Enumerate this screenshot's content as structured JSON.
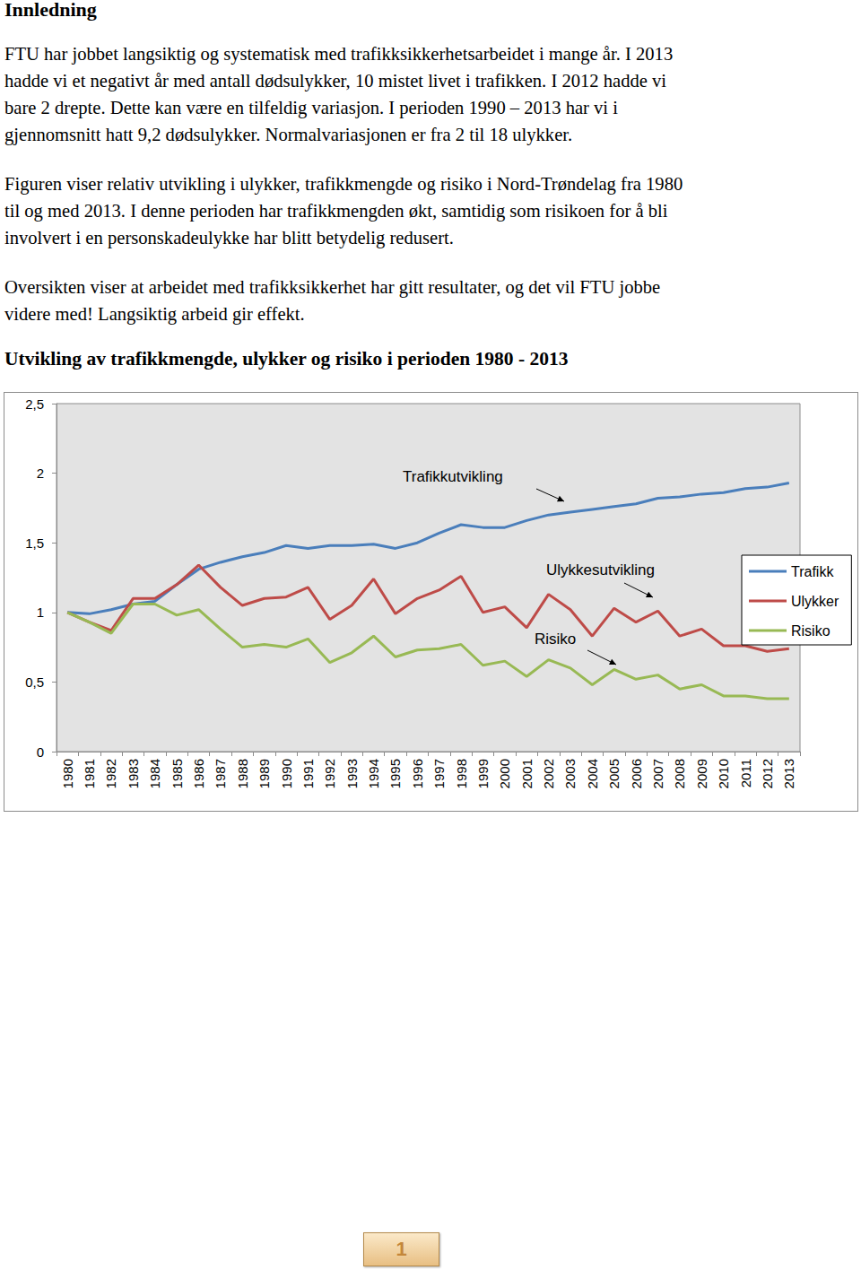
{
  "heading": "Innledning",
  "paragraphs": [
    [
      "FTU har jobbet langsiktig og systematisk med trafikksikkerhetsarbeidet i mange år. I 2013",
      "hadde vi et negativt år med antall dødsulykker, 10 mistet livet i trafikken. I 2012 hadde vi",
      "bare 2 drepte. Dette kan være en tilfeldig variasjon. I perioden 1990 – 2013 har vi i",
      "gjennomsnitt hatt 9,2 dødsulykker. Normalvariasjonen er fra 2 til 18 ulykker."
    ],
    [
      "Figuren viser relativ utvikling i ulykker, trafikkmengde og risiko i Nord-Trøndelag fra 1980",
      "til og med 2013. I denne perioden har trafikkmengden økt, samtidig som risikoen for å bli",
      "involvert i en personskadeulykke har blitt betydelig redusert."
    ],
    [
      "Oversikten viser at arbeidet med trafikksikkerhet har gitt resultater, og det vil FTU jobbe",
      "videre med! Langsiktig arbeid gir effekt."
    ]
  ],
  "figure_title": "Utvikling av trafikkmengde, ulykker og risiko i perioden 1980 - 2013",
  "chart_data": {
    "type": "line",
    "categories": [
      "1980",
      "1981",
      "1982",
      "1983",
      "1984",
      "1985",
      "1986",
      "1987",
      "1988",
      "1989",
      "1990",
      "1991",
      "1992",
      "1993",
      "1994",
      "1995",
      "1996",
      "1997",
      "1998",
      "1999",
      "2000",
      "2001",
      "2002",
      "2003",
      "2004",
      "2005",
      "2006",
      "2007",
      "2008",
      "2009",
      "2010",
      "2011",
      "2012",
      "2013"
    ],
    "series": [
      {
        "name": "Trafikk",
        "color": "#4a7ebb",
        "values": [
          1.0,
          0.99,
          1.02,
          1.06,
          1.08,
          1.2,
          1.31,
          1.36,
          1.4,
          1.43,
          1.48,
          1.46,
          1.48,
          1.48,
          1.49,
          1.46,
          1.5,
          1.57,
          1.63,
          1.61,
          1.61,
          1.66,
          1.7,
          1.72,
          1.74,
          1.76,
          1.78,
          1.82,
          1.83,
          1.85,
          1.86,
          1.89,
          1.9,
          1.93
        ]
      },
      {
        "name": "Ulykker",
        "color": "#be4b48",
        "values": [
          1.0,
          0.93,
          0.87,
          1.1,
          1.1,
          1.2,
          1.34,
          1.18,
          1.05,
          1.1,
          1.11,
          1.18,
          0.95,
          1.05,
          1.24,
          0.99,
          1.1,
          1.16,
          1.26,
          1.0,
          1.04,
          0.89,
          1.13,
          1.02,
          0.83,
          1.03,
          0.93,
          1.01,
          0.83,
          0.88,
          0.76,
          0.76,
          0.72,
          0.74
        ]
      },
      {
        "name": "Risiko",
        "color": "#98b954",
        "values": [
          1.0,
          0.93,
          0.85,
          1.06,
          1.06,
          0.98,
          1.02,
          0.88,
          0.75,
          0.77,
          0.75,
          0.81,
          0.64,
          0.71,
          0.83,
          0.68,
          0.73,
          0.74,
          0.77,
          0.62,
          0.65,
          0.54,
          0.66,
          0.6,
          0.48,
          0.59,
          0.52,
          0.55,
          0.45,
          0.48,
          0.4,
          0.4,
          0.38,
          0.38
        ]
      }
    ],
    "ylim": [
      0,
      2.5
    ],
    "yticks": [
      0,
      {
        "value": 0.5,
        "label": "0,5"
      },
      1,
      {
        "value": 1.5,
        "label": "1,5"
      },
      2,
      {
        "value": 2.5,
        "label": "2,5"
      }
    ],
    "grid": false,
    "legend": "right",
    "annotations": [
      "Trafikkutvikling",
      "Ulykkesutvikling",
      "Risiko"
    ]
  },
  "page_number": "1"
}
